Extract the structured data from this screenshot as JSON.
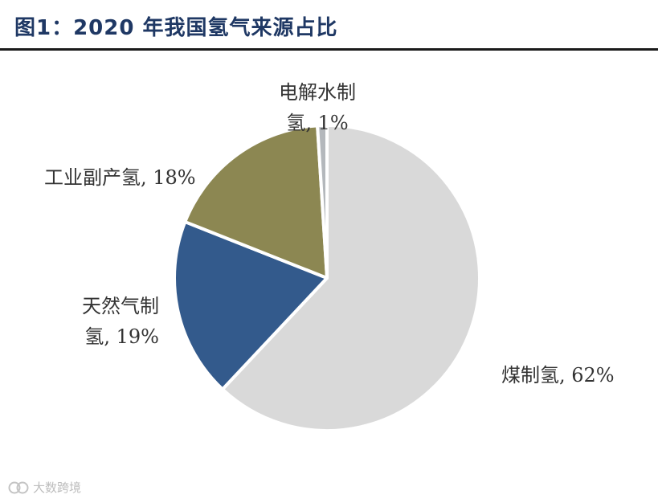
{
  "figure": {
    "title": "图1：2020 年我国氢气来源占比"
  },
  "chart_data": {
    "type": "pie",
    "title": "",
    "slices": [
      {
        "label": "煤制氢, 62%",
        "value": 62,
        "color": "#d9d9d9"
      },
      {
        "label": "天然气制氢, 19%",
        "value": 19,
        "color": "#335a8c"
      },
      {
        "label": "工业副产氢, 18%",
        "value": 18,
        "color": "#8c8752"
      },
      {
        "label": "电解水制氢, 1%",
        "value": 1,
        "color": "#b4b8bc"
      }
    ]
  },
  "labels": {
    "coal_line1": "煤制氢, 62%",
    "gas_line1": "天然气制",
    "gas_line2": "氢, 19%",
    "industrial_line1": "工业副产氢, 18%",
    "electrolysis_line1": "电解水制",
    "electrolysis_line2": "氢, 1%"
  },
  "watermark": {
    "text": "大数跨境",
    "icon": "brand-logo-icon"
  }
}
